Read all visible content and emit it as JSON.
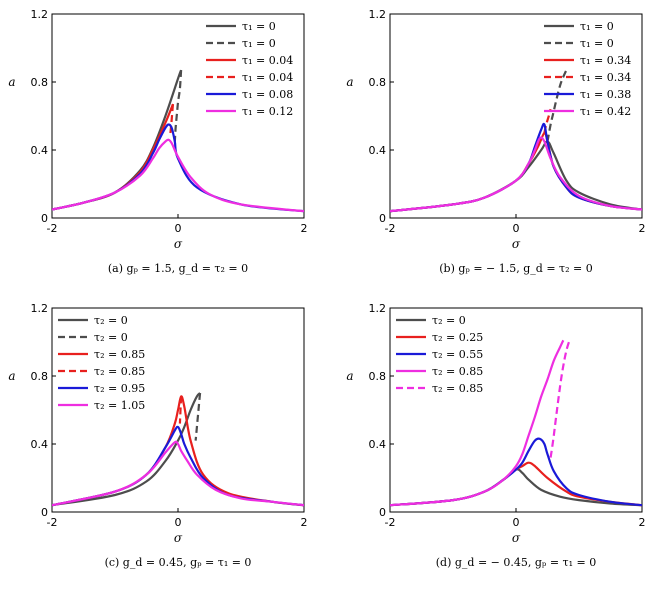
{
  "chart_data": [
    {
      "type": "line",
      "title": "",
      "caption": "(a) gₚ = 1.5, g_d = τ₂ = 0",
      "xlabel": "σ",
      "ylabel": "a",
      "xlim": [
        -2,
        2
      ],
      "ylim": [
        0,
        1.2
      ],
      "xticks": [
        "-2",
        "0",
        "2"
      ],
      "yticks": [
        "0",
        "0.4",
        "0.8",
        "1.2"
      ],
      "legend_position": "top-right",
      "series": [
        {
          "name": "τ₁ = 0",
          "color": "#4d4d4d",
          "dash": false,
          "x": [
            -2,
            -1.5,
            -1,
            -0.6,
            -0.4,
            -0.2,
            0,
            0.05
          ],
          "y": [
            0.05,
            0.09,
            0.15,
            0.28,
            0.41,
            0.6,
            0.82,
            0.87
          ]
        },
        {
          "name": "τ₁ = 0",
          "color": "#4d4d4d",
          "dash": true,
          "x": [
            0.05,
            0.03,
            0.0,
            -0.02,
            -0.04,
            -0.05
          ],
          "y": [
            0.87,
            0.76,
            0.68,
            0.6,
            0.52,
            0.45
          ]
        },
        {
          "name": "τ₁ = 0.04",
          "color": "#e8201e",
          "dash": false,
          "x": [
            -2,
            -1.5,
            -1,
            -0.6,
            -0.4,
            -0.2,
            -0.08
          ],
          "y": [
            0.05,
            0.09,
            0.15,
            0.27,
            0.4,
            0.56,
            0.67
          ]
        },
        {
          "name": "τ₁ = 0.04",
          "color": "#e8201e",
          "dash": true,
          "x": [
            -0.08,
            -0.1,
            -0.12
          ],
          "y": [
            0.67,
            0.58,
            0.5
          ]
        },
        {
          "name": "τ₁ = 0.08",
          "color": "#1a1ad8",
          "dash": false,
          "x": [
            -2,
            -1.5,
            -1,
            -0.6,
            -0.4,
            -0.3,
            -0.2,
            -0.15,
            -0.1,
            -0.05,
            0,
            0.3,
            1,
            2
          ],
          "y": [
            0.05,
            0.09,
            0.15,
            0.26,
            0.38,
            0.46,
            0.53,
            0.55,
            0.53,
            0.45,
            0.35,
            0.18,
            0.08,
            0.04
          ]
        },
        {
          "name": "τ₁ = 0.12",
          "color": "#ee2ee0",
          "dash": false,
          "x": [
            -2,
            -1.5,
            -1,
            -0.6,
            -0.4,
            -0.3,
            -0.2,
            -0.15,
            -0.1,
            0,
            0.2,
            0.5,
            1,
            2
          ],
          "y": [
            0.05,
            0.09,
            0.15,
            0.25,
            0.35,
            0.41,
            0.45,
            0.46,
            0.44,
            0.36,
            0.24,
            0.14,
            0.08,
            0.04
          ]
        }
      ]
    },
    {
      "type": "line",
      "title": "",
      "caption": "(b) gₚ = − 1.5, g_d = τ₂ = 0",
      "xlabel": "σ",
      "ylabel": "a",
      "xlim": [
        -2,
        2
      ],
      "ylim": [
        0,
        1.2
      ],
      "xticks": [
        "-2",
        "0",
        "2"
      ],
      "yticks": [
        "0",
        "0.4",
        "0.8",
        "1.2"
      ],
      "legend_position": "top-right",
      "series": [
        {
          "name": "τ₁ = 0",
          "color": "#4d4d4d",
          "dash": false,
          "x": [
            -2,
            -1,
            -0.5,
            0,
            0.2,
            0.4,
            0.5,
            0.6,
            0.8,
            1,
            1.5,
            2
          ],
          "y": [
            0.04,
            0.08,
            0.12,
            0.22,
            0.3,
            0.4,
            0.45,
            0.38,
            0.22,
            0.15,
            0.08,
            0.05
          ]
        },
        {
          "name": "τ₁ = 0",
          "color": "#4d4d4d",
          "dash": true,
          "x": [
            0.5,
            0.55,
            0.6,
            0.65,
            0.7,
            0.75,
            0.8
          ],
          "y": [
            0.45,
            0.55,
            0.63,
            0.71,
            0.78,
            0.83,
            0.87
          ]
        },
        {
          "name": "τ₁ = 0.34",
          "color": "#e8201e",
          "dash": false,
          "x": [
            -2,
            -1,
            -0.5,
            0,
            0.2,
            0.35,
            0.45,
            0.5,
            0.6,
            0.8,
            1,
            1.5,
            2
          ],
          "y": [
            0.04,
            0.08,
            0.12,
            0.22,
            0.32,
            0.42,
            0.5,
            0.45,
            0.3,
            0.18,
            0.12,
            0.07,
            0.05
          ]
        },
        {
          "name": "τ₁ = 0.34",
          "color": "#e8201e",
          "dash": true,
          "x": [
            0.45,
            0.48,
            0.52,
            0.55
          ],
          "y": [
            0.5,
            0.55,
            0.6,
            0.64
          ]
        },
        {
          "name": "τ₁ = 0.38",
          "color": "#1a1ad8",
          "dash": false,
          "x": [
            -2,
            -1,
            -0.5,
            0,
            0.2,
            0.3,
            0.4,
            0.45,
            0.5,
            0.6,
            0.8,
            1,
            1.5,
            2
          ],
          "y": [
            0.04,
            0.08,
            0.12,
            0.22,
            0.32,
            0.42,
            0.52,
            0.55,
            0.45,
            0.3,
            0.18,
            0.12,
            0.07,
            0.05
          ]
        },
        {
          "name": "τ₁ = 0.42",
          "color": "#ee2ee0",
          "dash": false,
          "x": [
            -2,
            -1,
            -0.5,
            0,
            0.2,
            0.3,
            0.38,
            0.45,
            0.55,
            0.7,
            1,
            1.5,
            2
          ],
          "y": [
            0.04,
            0.08,
            0.12,
            0.22,
            0.32,
            0.4,
            0.47,
            0.45,
            0.35,
            0.24,
            0.13,
            0.07,
            0.05
          ]
        }
      ]
    },
    {
      "type": "line",
      "title": "",
      "caption": "(c) g_d = 0.45, gₚ = τ₁ = 0",
      "xlabel": "σ",
      "ylabel": "a",
      "xlim": [
        -2,
        2
      ],
      "ylim": [
        0,
        1.2
      ],
      "xticks": [
        "-2",
        "0",
        "2"
      ],
      "yticks": [
        "0",
        "0.4",
        "0.8",
        "1.2"
      ],
      "legend_position": "top-left",
      "series": [
        {
          "name": "τ₂ = 0",
          "color": "#4d4d4d",
          "dash": false,
          "x": [
            -2,
            -1,
            -0.5,
            -0.2,
            0,
            0.1,
            0.2,
            0.3,
            0.35
          ],
          "y": [
            0.04,
            0.1,
            0.18,
            0.3,
            0.42,
            0.5,
            0.6,
            0.68,
            0.7
          ]
        },
        {
          "name": "τ₂ = 0",
          "color": "#4d4d4d",
          "dash": true,
          "x": [
            0.35,
            0.33,
            0.3,
            0.28
          ],
          "y": [
            0.7,
            0.62,
            0.5,
            0.42
          ]
        },
        {
          "name": "τ₂ = 0.85",
          "color": "#e8201e",
          "dash": false,
          "x": [
            -2,
            -1,
            -0.5,
            -0.2,
            -0.05,
            0,
            0.05,
            0.1,
            0.2,
            0.4,
            0.8,
            1.5,
            2
          ],
          "y": [
            0.04,
            0.12,
            0.22,
            0.38,
            0.52,
            0.6,
            0.68,
            0.62,
            0.42,
            0.22,
            0.11,
            0.06,
            0.04
          ]
        },
        {
          "name": "τ₂ = 0.85",
          "color": "#e8201e",
          "dash": true,
          "x": [
            0.05,
            0.04,
            0.03
          ],
          "y": [
            0.68,
            0.6,
            0.52
          ]
        },
        {
          "name": "τ₂ = 0.95",
          "color": "#1a1ad8",
          "dash": false,
          "x": [
            -2,
            -1,
            -0.5,
            -0.2,
            -0.05,
            0,
            0.05,
            0.1,
            0.2,
            0.4,
            0.8,
            1.5,
            2
          ],
          "y": [
            0.04,
            0.12,
            0.22,
            0.38,
            0.48,
            0.5,
            0.46,
            0.4,
            0.32,
            0.2,
            0.1,
            0.06,
            0.04
          ]
        },
        {
          "name": "τ₂ = 1.05",
          "color": "#ee2ee0",
          "dash": false,
          "x": [
            -2,
            -1,
            -0.5,
            -0.2,
            -0.05,
            0,
            0.05,
            0.15,
            0.3,
            0.6,
            1,
            1.5,
            2
          ],
          "y": [
            0.04,
            0.12,
            0.22,
            0.35,
            0.41,
            0.4,
            0.36,
            0.3,
            0.22,
            0.13,
            0.08,
            0.06,
            0.04
          ]
        }
      ]
    },
    {
      "type": "line",
      "title": "",
      "caption": "(d) g_d = − 0.45, gₚ = τ₁ = 0",
      "xlabel": "σ",
      "ylabel": "a",
      "xlim": [
        -2,
        2
      ],
      "ylim": [
        0,
        1.2
      ],
      "xticks": [
        "-2",
        "0",
        "2"
      ],
      "yticks": [
        "0",
        "0.4",
        "0.8",
        "1.2"
      ],
      "legend_position": "top-left",
      "series": [
        {
          "name": "τ₂ = 0",
          "color": "#4d4d4d",
          "dash": false,
          "x": [
            -2,
            -1,
            -0.5,
            -0.2,
            0,
            0.1,
            0.2,
            0.4,
            0.7,
            1,
            1.5,
            2
          ],
          "y": [
            0.04,
            0.07,
            0.12,
            0.19,
            0.25,
            0.23,
            0.19,
            0.13,
            0.09,
            0.07,
            0.05,
            0.04
          ]
        },
        {
          "name": "τ₂ = 0.25",
          "color": "#e8201e",
          "dash": false,
          "x": [
            -2,
            -1,
            -0.5,
            -0.2,
            0,
            0.1,
            0.2,
            0.3,
            0.5,
            0.8,
            1,
            1.5,
            2
          ],
          "y": [
            0.04,
            0.07,
            0.12,
            0.19,
            0.25,
            0.27,
            0.29,
            0.27,
            0.2,
            0.12,
            0.09,
            0.06,
            0.04
          ]
        },
        {
          "name": "τ₂ = 0.55",
          "color": "#1a1ad8",
          "dash": false,
          "x": [
            -2,
            -1,
            -0.5,
            -0.2,
            0,
            0.1,
            0.2,
            0.3,
            0.38,
            0.45,
            0.5,
            0.6,
            0.8,
            1,
            1.5,
            2
          ],
          "y": [
            0.04,
            0.07,
            0.12,
            0.19,
            0.25,
            0.29,
            0.36,
            0.42,
            0.43,
            0.4,
            0.34,
            0.24,
            0.14,
            0.1,
            0.06,
            0.04
          ]
        },
        {
          "name": "τ₂ = 0.85",
          "color": "#ee2ee0",
          "dash": false,
          "x": [
            -2,
            -1,
            -0.5,
            -0.2,
            0,
            0.1,
            0.2,
            0.3,
            0.4,
            0.5,
            0.6,
            0.7,
            0.75
          ],
          "y": [
            0.04,
            0.07,
            0.12,
            0.19,
            0.27,
            0.34,
            0.45,
            0.56,
            0.68,
            0.78,
            0.89,
            0.97,
            1.01
          ]
        },
        {
          "name": "τ₂ = 0.85",
          "color": "#ee2ee0",
          "dash": true,
          "x": [
            0.55,
            0.6,
            0.65,
            0.7,
            0.75,
            0.8,
            0.85
          ],
          "y": [
            0.32,
            0.45,
            0.6,
            0.74,
            0.86,
            0.95,
            1.01
          ]
        }
      ]
    }
  ]
}
